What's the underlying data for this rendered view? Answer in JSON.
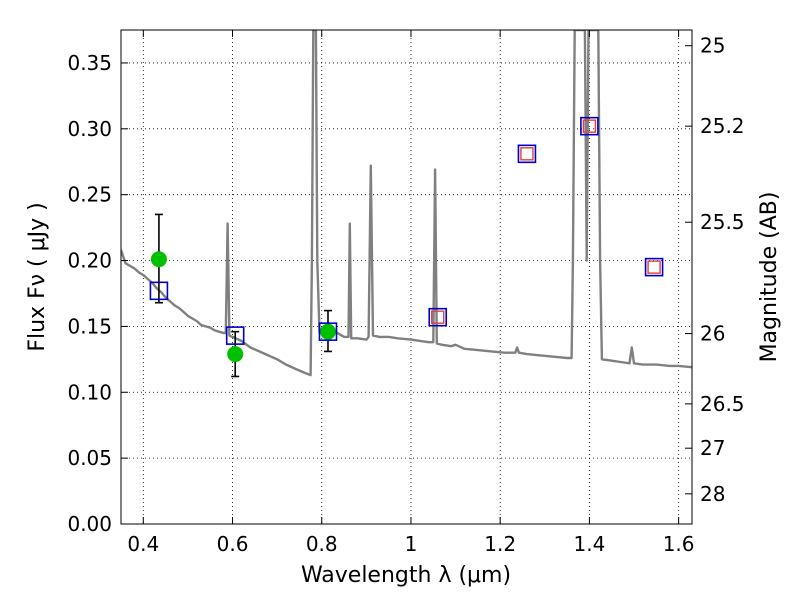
{
  "chart_data": {
    "type": "scatter",
    "xlabel": "Wavelength  λ (μm)",
    "ylabel": "Flux  Fν  ( μJy )",
    "y2label": "Magnitude (AB)",
    "xlim": [
      0.35,
      1.63
    ],
    "ylim": [
      0.0,
      0.375
    ],
    "grid": true,
    "x_ticks": [
      {
        "value": 0.4,
        "label": "0.4"
      },
      {
        "value": 0.6,
        "label": "0.6"
      },
      {
        "value": 0.8,
        "label": "0.8"
      },
      {
        "value": 1.0,
        "label": "1"
      },
      {
        "value": 1.2,
        "label": "1.2"
      },
      {
        "value": 1.4,
        "label": "1.4"
      },
      {
        "value": 1.6,
        "label": "1.6"
      }
    ],
    "y_ticks": [
      {
        "value": 0.0,
        "label": "0.00"
      },
      {
        "value": 0.05,
        "label": "0.05"
      },
      {
        "value": 0.1,
        "label": "0.10"
      },
      {
        "value": 0.15,
        "label": "0.15"
      },
      {
        "value": 0.2,
        "label": "0.20"
      },
      {
        "value": 0.25,
        "label": "0.25"
      },
      {
        "value": 0.3,
        "label": "0.30"
      },
      {
        "value": 0.35,
        "label": "0.35"
      }
    ],
    "mag_ticks": [
      {
        "mag": 25,
        "label": "25"
      },
      {
        "mag": 25.2,
        "label": "25.2"
      },
      {
        "mag": 25.5,
        "label": "25.5"
      },
      {
        "mag": 26,
        "label": "26"
      },
      {
        "mag": 26.5,
        "label": "26.5"
      },
      {
        "mag": 27,
        "label": "27"
      },
      {
        "mag": 28,
        "label": "28"
      }
    ],
    "series": [
      {
        "kind": "spectrum",
        "color": "#808080",
        "points": [
          [
            0.35,
            0.208
          ],
          [
            0.36,
            0.198
          ],
          [
            0.37,
            0.196
          ],
          [
            0.38,
            0.194
          ],
          [
            0.39,
            0.191
          ],
          [
            0.4,
            0.189
          ],
          [
            0.41,
            0.186
          ],
          [
            0.42,
            0.183
          ],
          [
            0.43,
            0.179
          ],
          [
            0.44,
            0.176
          ],
          [
            0.45,
            0.172
          ],
          [
            0.46,
            0.169
          ],
          [
            0.47,
            0.166
          ],
          [
            0.48,
            0.164
          ],
          [
            0.49,
            0.161
          ],
          [
            0.5,
            0.158
          ],
          [
            0.51,
            0.156
          ],
          [
            0.52,
            0.154
          ],
          [
            0.53,
            0.151
          ],
          [
            0.54,
            0.15
          ],
          [
            0.55,
            0.149
          ],
          [
            0.56,
            0.147
          ],
          [
            0.57,
            0.146
          ],
          [
            0.58,
            0.145
          ],
          [
            0.585,
            0.145
          ],
          [
            0.589,
            0.228
          ],
          [
            0.593,
            0.143
          ],
          [
            0.6,
            0.142
          ],
          [
            0.62,
            0.139
          ],
          [
            0.64,
            0.134
          ],
          [
            0.66,
            0.131
          ],
          [
            0.68,
            0.128
          ],
          [
            0.7,
            0.125
          ],
          [
            0.72,
            0.121
          ],
          [
            0.74,
            0.118
          ],
          [
            0.76,
            0.115
          ],
          [
            0.775,
            0.113
          ],
          [
            0.778,
            0.2
          ],
          [
            0.781,
            0.375
          ],
          [
            0.787,
            0.375
          ],
          [
            0.79,
            0.2
          ],
          [
            0.795,
            0.145
          ],
          [
            0.8,
            0.147
          ],
          [
            0.81,
            0.15
          ],
          [
            0.82,
            0.148
          ],
          [
            0.83,
            0.146
          ],
          [
            0.84,
            0.144
          ],
          [
            0.85,
            0.142
          ],
          [
            0.86,
            0.142
          ],
          [
            0.863,
            0.228
          ],
          [
            0.866,
            0.141
          ],
          [
            0.88,
            0.141
          ],
          [
            0.9,
            0.14
          ],
          [
            0.905,
            0.142
          ],
          [
            0.91,
            0.272
          ],
          [
            0.915,
            0.143
          ],
          [
            0.93,
            0.142
          ],
          [
            0.95,
            0.142
          ],
          [
            0.97,
            0.141
          ],
          [
            1.0,
            0.14
          ],
          [
            1.02,
            0.139
          ],
          [
            1.04,
            0.138
          ],
          [
            1.05,
            0.138
          ],
          [
            1.054,
            0.269
          ],
          [
            1.058,
            0.137
          ],
          [
            1.07,
            0.136
          ],
          [
            1.09,
            0.135
          ],
          [
            1.1,
            0.136
          ],
          [
            1.12,
            0.133
          ],
          [
            1.15,
            0.132
          ],
          [
            1.18,
            0.131
          ],
          [
            1.21,
            0.13
          ],
          [
            1.234,
            0.13
          ],
          [
            1.238,
            0.134
          ],
          [
            1.242,
            0.13
          ],
          [
            1.26,
            0.129
          ],
          [
            1.29,
            0.128
          ],
          [
            1.32,
            0.127
          ],
          [
            1.35,
            0.126
          ],
          [
            1.36,
            0.126
          ],
          [
            1.363,
            0.2
          ],
          [
            1.367,
            0.375
          ],
          [
            1.39,
            0.375
          ],
          [
            1.394,
            0.2
          ],
          [
            1.398,
            0.375
          ],
          [
            1.42,
            0.375
          ],
          [
            1.424,
            0.2
          ],
          [
            1.428,
            0.125
          ],
          [
            1.45,
            0.124
          ],
          [
            1.47,
            0.123
          ],
          [
            1.49,
            0.122
          ],
          [
            1.495,
            0.134
          ],
          [
            1.5,
            0.122
          ],
          [
            1.52,
            0.121
          ],
          [
            1.55,
            0.121
          ],
          [
            1.58,
            0.12
          ],
          [
            1.6,
            0.12
          ],
          [
            1.63,
            0.119
          ]
        ]
      },
      {
        "kind": "observed",
        "marker": "circle",
        "color": "#00c000",
        "points": [
          {
            "x": 0.435,
            "y": 0.201,
            "err_low": 0.033,
            "err_high": 0.034
          },
          {
            "x": 0.606,
            "y": 0.129,
            "err_low": 0.017,
            "err_high": 0.017
          },
          {
            "x": 0.814,
            "y": 0.146,
            "err_low": 0.015,
            "err_high": 0.016
          }
        ]
      },
      {
        "kind": "model",
        "marker": "square",
        "color": "#0000cc",
        "points": [
          {
            "x": 0.435,
            "y": 0.177
          },
          {
            "x": 0.606,
            "y": 0.143
          },
          {
            "x": 0.814,
            "y": 0.146
          },
          {
            "x": 1.06,
            "y": 0.157
          },
          {
            "x": 1.26,
            "y": 0.281
          },
          {
            "x": 1.4,
            "y": 0.302
          },
          {
            "x": 1.545,
            "y": 0.195
          }
        ]
      },
      {
        "kind": "model-inner",
        "marker": "square",
        "color": "#e04040",
        "points": [
          {
            "x": 1.06,
            "y": 0.157
          },
          {
            "x": 1.26,
            "y": 0.281
          },
          {
            "x": 1.4,
            "y": 0.302
          },
          {
            "x": 1.545,
            "y": 0.195
          }
        ]
      }
    ]
  }
}
